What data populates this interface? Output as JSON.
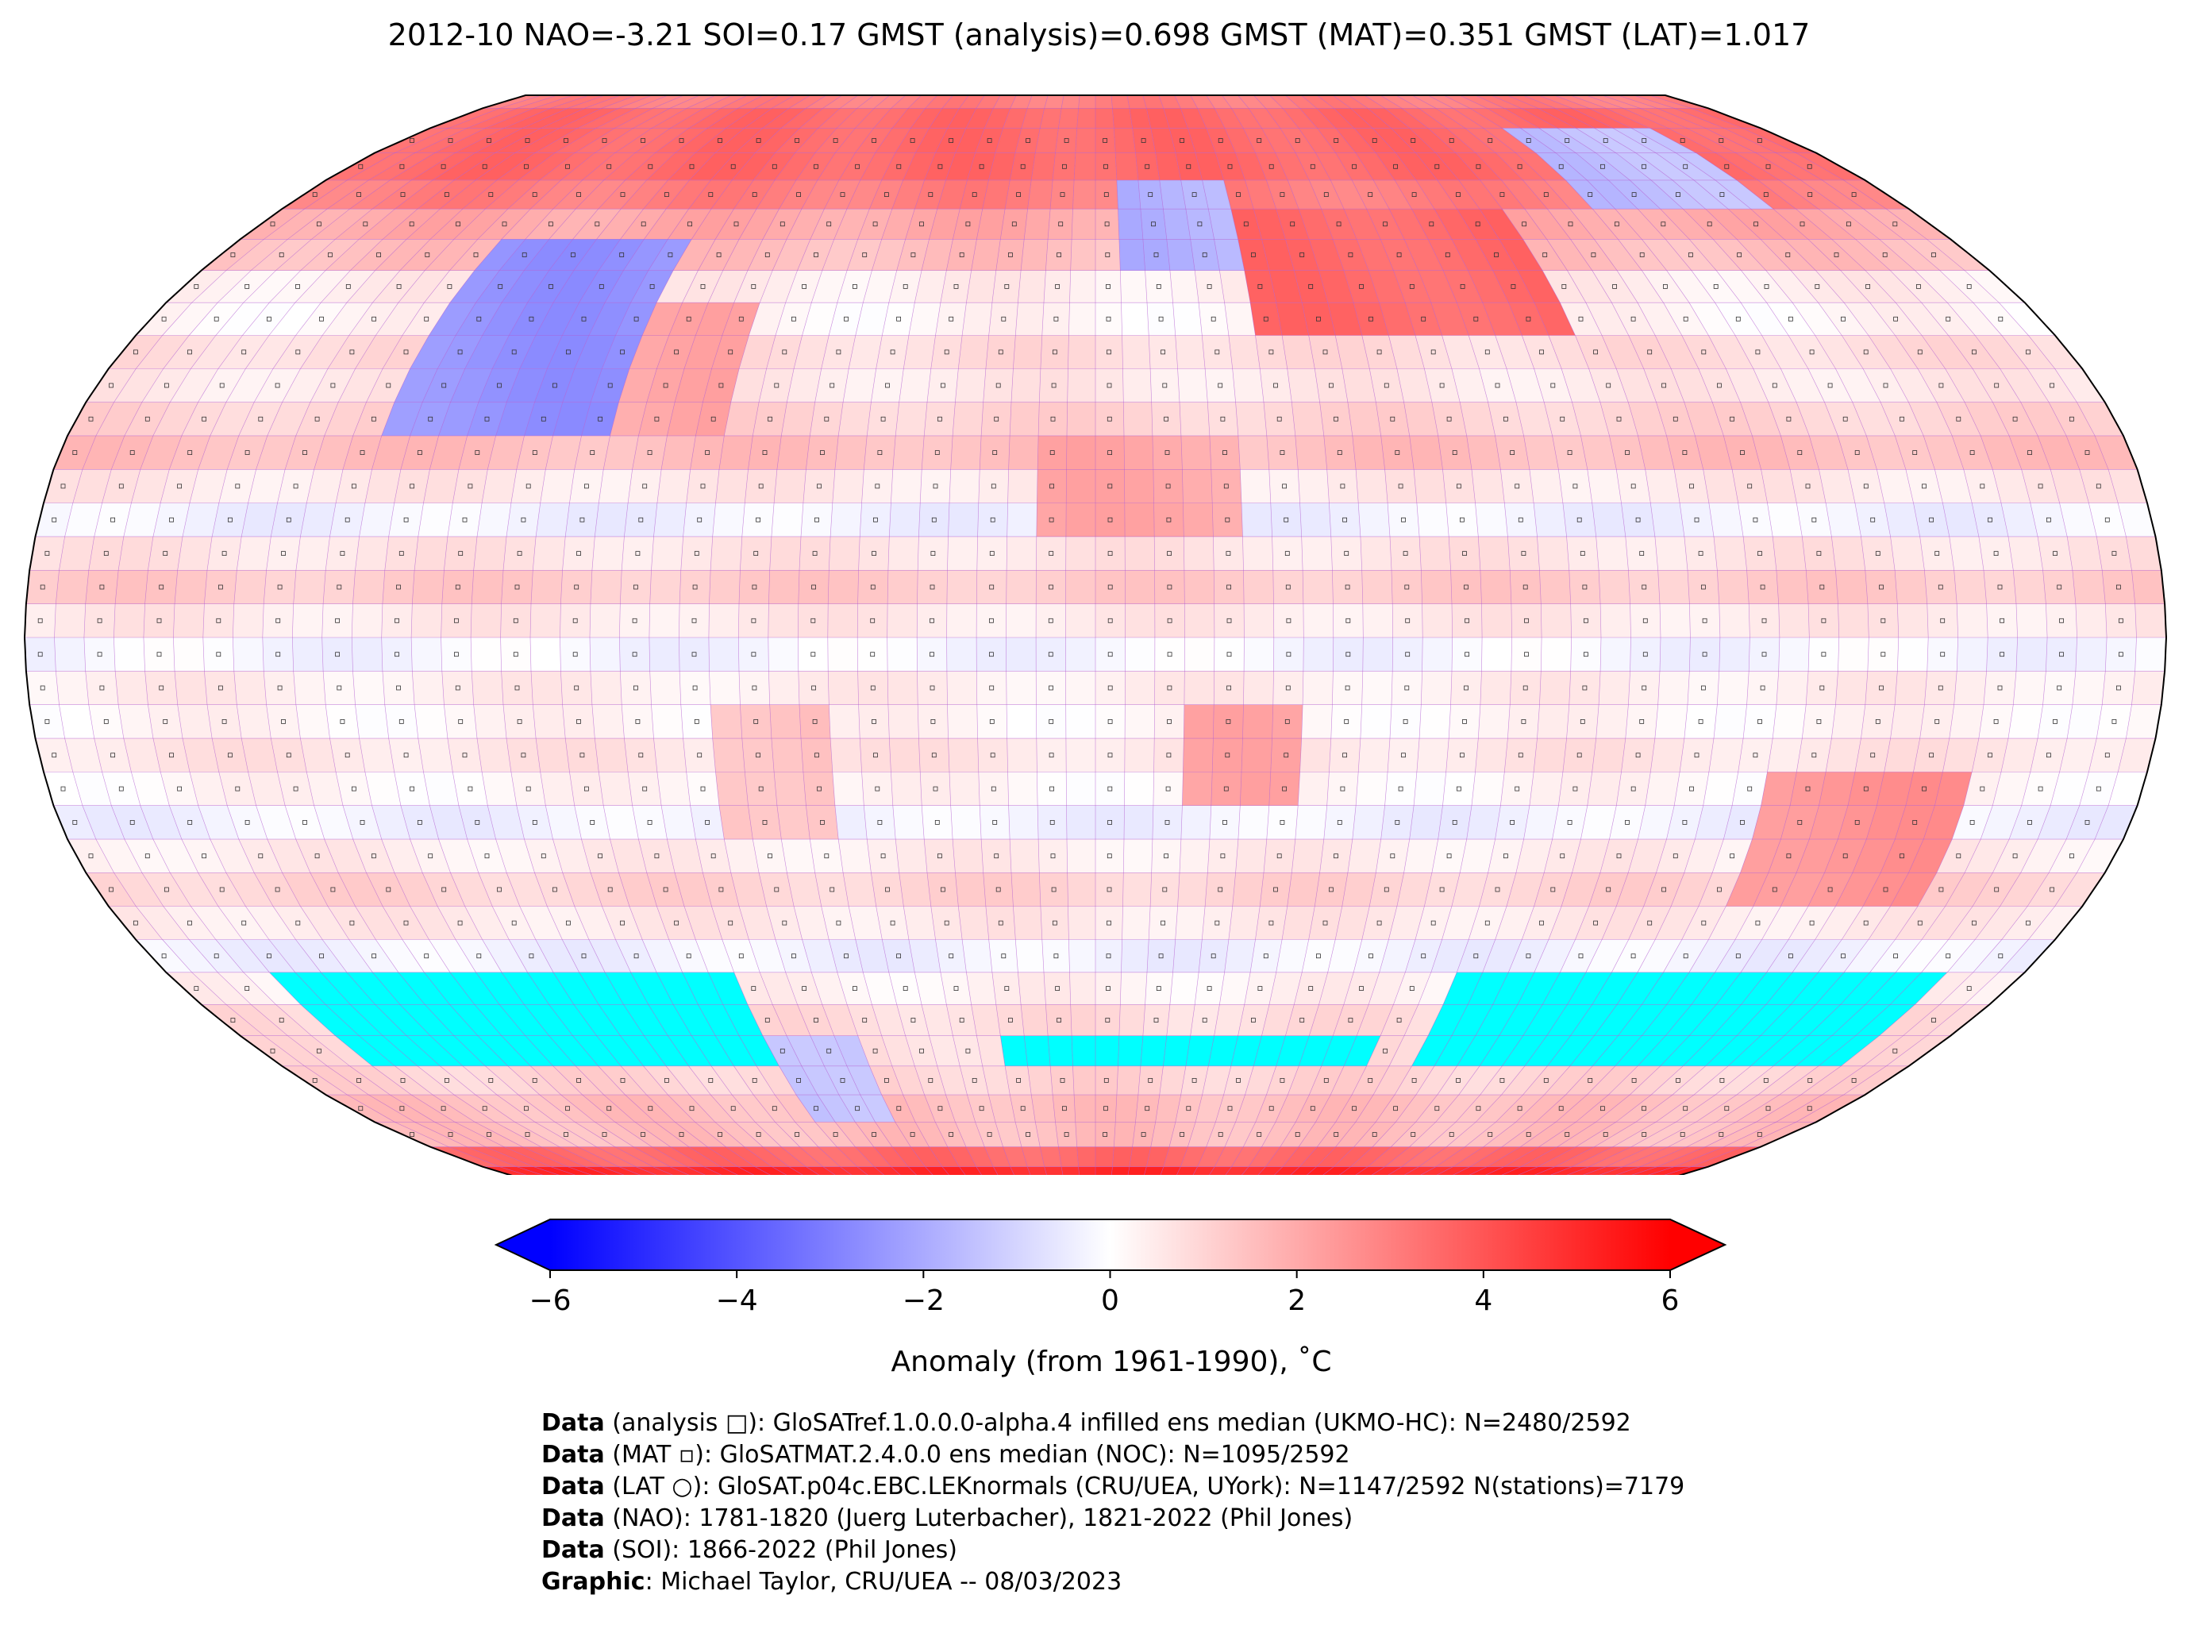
{
  "title": "2012-10 NAO=-3.21 SOI=0.17 GMST (analysis)=0.698 GMST (MAT)=0.351 GMST (LAT)=1.017",
  "colors": {
    "cold": "#0000ff",
    "neutral": "#ffffff",
    "warm": "#ff0000",
    "missing_sea_ice": "#00ffff",
    "grid_lines": "#b05ad0",
    "coast": "#000000"
  },
  "colorbar": {
    "label": "Anomaly (from 1961-1990), ˚C",
    "ticks": [
      "−6",
      "−4",
      "−2",
      "0",
      "2",
      "4",
      "6"
    ],
    "tick_values": [
      -6,
      -4,
      -2,
      0,
      2,
      4,
      6
    ],
    "min": -6,
    "max": 6,
    "extend": "both"
  },
  "credits": [
    {
      "bold": "Data",
      "text": " (analysis □): GloSATref.1.0.0.0-alpha.4 infilled ens median (UKMO-HC): N=2480/2592"
    },
    {
      "bold": "Data",
      "text": " (MAT ▫): GloSATMAT.2.4.0.0 ens median (NOC): N=1095/2592"
    },
    {
      "bold": "Data",
      "text": " (LAT ○): GloSAT.p04c.EBC.LEKnormals (CRU/UEA, UYork): N=1147/2592 N(stations)=7179"
    },
    {
      "bold": "Data",
      "text": " (NAO): 1781-1820 (Juerg Luterbacher), 1821-2022 (Phil Jones)"
    },
    {
      "bold": "Data",
      "text": " (SOI): 1866-2022 (Phil Jones)"
    },
    {
      "bold": "Graphic",
      "text": ": Michael Taylor, CRU/UEA -- 08/03/2023"
    }
  ],
  "map": {
    "projection": "Robinson",
    "grid_resolution_deg": 5,
    "zonal_anomaly_by_band": [
      5.0,
      3.5,
      1.5,
      1.5,
      1.0,
      0.8,
      0.8,
      0.3,
      -0.3,
      0.5,
      1.0,
      0.4,
      -0.3,
      0.2,
      0.6,
      0.2,
      0.4,
      -0.2,
      0.5,
      1.2,
      0.6,
      -0.3,
      0.5,
      1.5,
      1.0,
      0.5,
      0.8,
      0.2,
      0.4,
      1.5,
      2.0,
      3.0,
      3.5,
      3.5,
      3.5,
      3.0
    ],
    "regional_anomalies": [
      {
        "region": "North America interior",
        "lon": [
          -125,
          -85
        ],
        "lat": [
          30,
          60
        ],
        "value": -2.5
      },
      {
        "region": "Eastern US",
        "lon": [
          -85,
          -65
        ],
        "lat": [
          30,
          50
        ],
        "value": 2.0
      },
      {
        "region": "Scandinavia",
        "lon": [
          5,
          30
        ],
        "lat": [
          55,
          70
        ],
        "value": -1.8
      },
      {
        "region": "Russia",
        "lon": [
          30,
          90
        ],
        "lat": [
          45,
          65
        ],
        "value": 3.5
      },
      {
        "region": "East Siberia",
        "lon": [
          110,
          150
        ],
        "lat": [
          65,
          80
        ],
        "value": -1.5
      },
      {
        "region": "Sahara",
        "lon": [
          -10,
          25
        ],
        "lat": [
          15,
          30
        ],
        "value": 2.0
      },
      {
        "region": "South America interior",
        "lon": [
          -65,
          -45
        ],
        "lat": [
          -30,
          -10
        ],
        "value": 1.5
      },
      {
        "region": "Southern Africa",
        "lon": [
          15,
          35
        ],
        "lat": [
          -25,
          -10
        ],
        "value": 2.0
      },
      {
        "region": "Australia",
        "lon": [
          115,
          150
        ],
        "lat": [
          -40,
          -20
        ],
        "value": 2.5
      },
      {
        "region": "Antarctic Peninsula",
        "lon": [
          -70,
          -50
        ],
        "lat": [
          -75,
          -60
        ],
        "value": -1.5
      }
    ],
    "missing_data_regions": [
      {
        "lon": [
          -160,
          -70
        ],
        "lat": [
          -65,
          -50
        ]
      },
      {
        "lon": [
          -20,
          60
        ],
        "lat": [
          -65,
          -60
        ]
      },
      {
        "lon": [
          70,
          165
        ],
        "lat": [
          -65,
          -50
        ]
      }
    ]
  }
}
